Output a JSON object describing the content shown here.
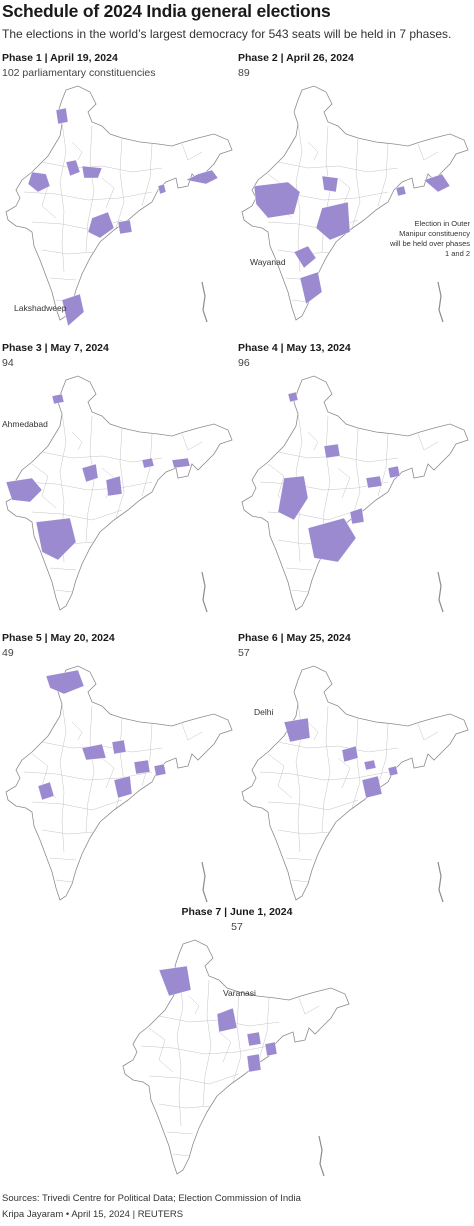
{
  "header": {
    "title": "Schedule of 2024 India general elections",
    "subtitle": "The elections in the world’s largest democracy for 543 seats will be held in 7 phases."
  },
  "phases": [
    {
      "label": "Phase 1 | April 19, 2024",
      "count": "102 parliamentary constituencies"
    },
    {
      "label": "Phase 2 | April 26, 2024",
      "count": "89"
    },
    {
      "label": "Phase 3 | May 7, 2024",
      "count": "94"
    },
    {
      "label": "Phase 4 | May 13, 2024",
      "count": "96"
    },
    {
      "label": "Phase 5 | May 20, 2024",
      "count": "49"
    },
    {
      "label": "Phase 6 | May 25, 2024",
      "count": "57"
    },
    {
      "label": "Phase 7 | June 1, 2024",
      "count": "57"
    }
  ],
  "callouts": {
    "lakshadweep": "Lakshadweep",
    "wayanad": "Wayanad",
    "outer_manipur_note": "Election in Outer Manipur constituency will be held over phases 1 and 2",
    "ahmedabad": "Ahmedabad",
    "delhi": "Delhi",
    "varanasi": "Varanasi"
  },
  "colors": {
    "highlight": "#9b8ad0",
    "outline": "#8c8c8c"
  },
  "footer": {
    "sources": "Sources: Trivedi Centre for Political Data; Election Commission of India",
    "credit": "Kripa Jayaram • April 15, 2024 | REUTERS"
  }
}
